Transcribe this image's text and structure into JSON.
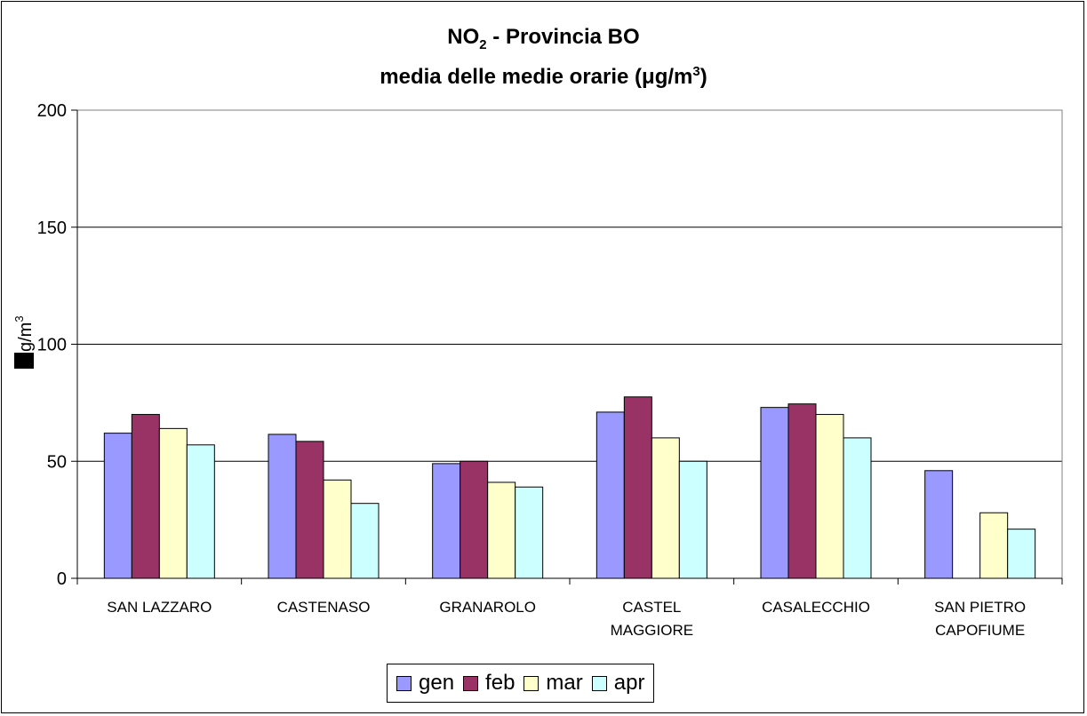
{
  "chart_data": {
    "type": "bar",
    "title_line1_main": "NO",
    "title_line1_sub": "2",
    "title_line1_rest": " - Provincia BO",
    "title_line2_main": "media delle medie orarie (μg/m",
    "title_line2_sup": "3",
    "title_line2_end": ")",
    "ylabel_main": "g/m",
    "ylabel_sup": "3",
    "ylim": [
      0,
      200
    ],
    "yticks": [
      0,
      50,
      100,
      150,
      200
    ],
    "grid": true,
    "legend_position": "bottom",
    "categories": [
      [
        "SAN LAZZARO"
      ],
      [
        "CASTENASO"
      ],
      [
        "GRANAROLO"
      ],
      [
        "CASTEL",
        "MAGGIORE"
      ],
      [
        "CASALECCHIO"
      ],
      [
        "SAN PIETRO",
        "CAPOFIUME"
      ]
    ],
    "series": [
      {
        "name": "gen",
        "color": "#9999ff",
        "values": [
          62,
          61.5,
          49,
          71,
          73,
          46
        ]
      },
      {
        "name": "feb",
        "color": "#993366",
        "values": [
          70,
          58.5,
          50,
          77.5,
          74.5,
          null
        ]
      },
      {
        "name": "mar",
        "color": "#ffffcc",
        "values": [
          64,
          42,
          41,
          60,
          70,
          28
        ]
      },
      {
        "name": "apr",
        "color": "#ccffff",
        "values": [
          57,
          32,
          39,
          50,
          60,
          21
        ]
      }
    ]
  }
}
